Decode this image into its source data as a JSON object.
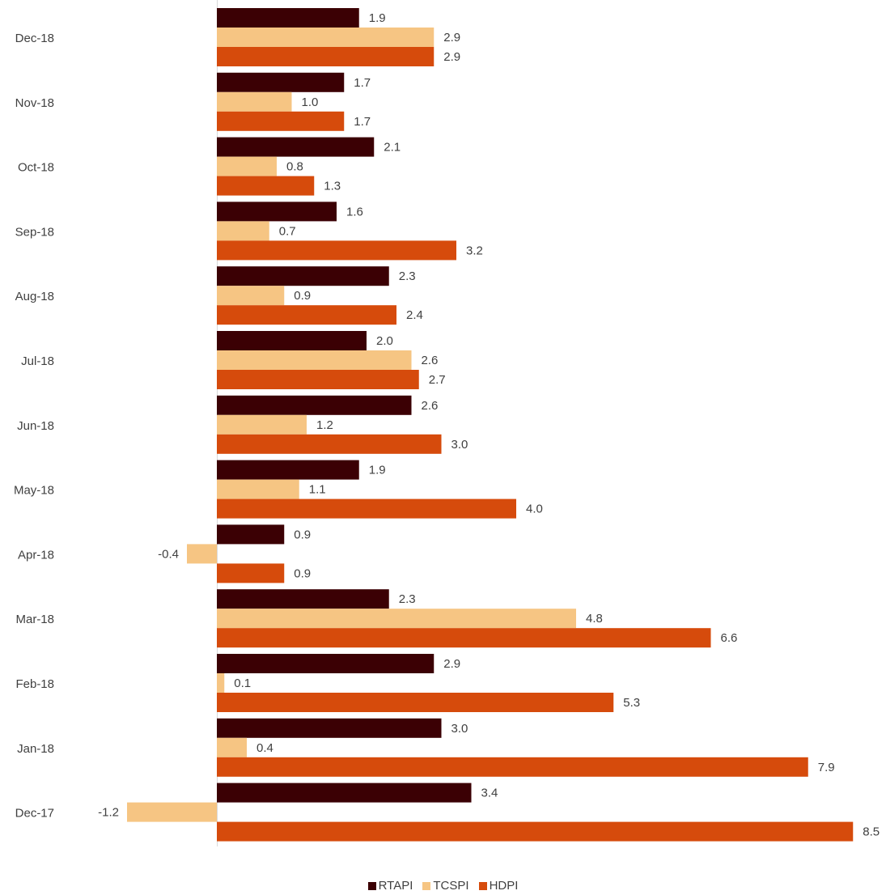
{
  "chart_data": {
    "type": "bar",
    "orientation": "horizontal",
    "categories": [
      "Dec-18",
      "Nov-18",
      "Oct-18",
      "Sep-18",
      "Aug-18",
      "Jul-18",
      "Jun-18",
      "May-18",
      "Apr-18",
      "Mar-18",
      "Feb-18",
      "Jan-18",
      "Dec-17"
    ],
    "series": [
      {
        "name": "RTAPI",
        "color": "#3b0004",
        "values": [
          1.9,
          1.7,
          2.1,
          1.6,
          2.3,
          2.0,
          2.6,
          1.9,
          0.9,
          2.3,
          2.9,
          3.0,
          3.4
        ]
      },
      {
        "name": "TCSPI",
        "color": "#f6c583",
        "values": [
          2.9,
          1.0,
          0.8,
          0.7,
          0.9,
          2.6,
          1.2,
          1.1,
          -0.4,
          4.8,
          0.1,
          0.4,
          -1.2
        ]
      },
      {
        "name": "HDPI",
        "color": "#d64b0c",
        "values": [
          2.9,
          1.7,
          1.3,
          3.2,
          2.4,
          2.7,
          3.0,
          4.0,
          0.9,
          6.6,
          5.3,
          7.9,
          8.5
        ]
      }
    ],
    "title": "",
    "xlabel": "",
    "ylabel": "",
    "legend_position": "bottom",
    "data_labels": true,
    "grid": false
  }
}
